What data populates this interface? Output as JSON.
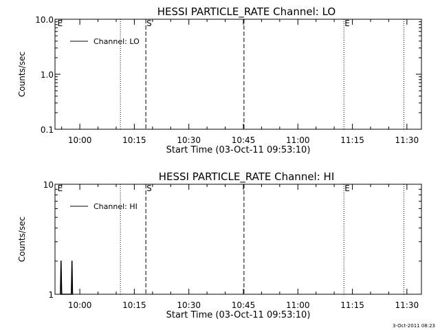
{
  "footer_stamp": "3-Oct-2011 08:23",
  "chart_data": [
    {
      "type": "line",
      "title": "HESSI PARTICLE_RATE Channel: LO",
      "xlabel": "Start Time (03-Oct-11 09:53:10)",
      "ylabel": "Counts/sec",
      "yscale": "log",
      "ylim": [
        0.1,
        10.0
      ],
      "y_ticks": [
        "10.0",
        "1.0",
        "0.1"
      ],
      "y_tick_values": [
        10.0,
        1.0,
        0.1
      ],
      "xlim": [
        "09:53:10",
        "11:34:00"
      ],
      "x_ticks": [
        "10:00",
        "10:15",
        "10:30",
        "10:45",
        "11:00",
        "11:15",
        "11:30"
      ],
      "legend": {
        "position": "top-left",
        "entries": [
          "Channel: LO"
        ]
      },
      "series": [
        {
          "name": "Channel: LO",
          "points": []
        }
      ],
      "markers": [
        {
          "time": "09:53:40",
          "style": "none",
          "label": "E"
        },
        {
          "time": "10:11:10",
          "style": "dotted",
          "label": ""
        },
        {
          "time": "10:18:10",
          "style": "dashed",
          "label": "S"
        },
        {
          "time": "10:45:10",
          "style": "dashed",
          "label": ""
        },
        {
          "time": "11:12:40",
          "style": "dotted",
          "label": "E"
        },
        {
          "time": "11:29:10",
          "style": "dotted",
          "label": ""
        }
      ]
    },
    {
      "type": "line",
      "title": "HESSI PARTICLE_RATE Channel: HI",
      "xlabel": "Start Time (03-Oct-11 09:53:10)",
      "ylabel": "Counts/sec",
      "yscale": "log",
      "ylim": [
        1,
        10
      ],
      "y_ticks": [
        "10",
        "1"
      ],
      "y_tick_values": [
        10,
        1
      ],
      "xlim": [
        "09:53:10",
        "11:34:00"
      ],
      "x_ticks": [
        "10:00",
        "10:15",
        "10:30",
        "10:45",
        "11:00",
        "11:15",
        "11:30"
      ],
      "legend": {
        "position": "top-left",
        "entries": [
          "Channel: HI"
        ]
      },
      "series": [
        {
          "name": "Channel: HI",
          "points": [
            [
              "09:54:40",
              1
            ],
            [
              "09:54:50",
              2
            ],
            [
              "09:55:00",
              1
            ],
            [
              "09:57:40",
              1
            ],
            [
              "09:57:50",
              2
            ],
            [
              "09:58:00",
              1
            ]
          ]
        }
      ],
      "markers": [
        {
          "time": "09:53:40",
          "style": "none",
          "label": "E"
        },
        {
          "time": "10:11:10",
          "style": "dotted",
          "label": ""
        },
        {
          "time": "10:18:10",
          "style": "dashed",
          "label": "S"
        },
        {
          "time": "10:45:10",
          "style": "dashed",
          "label": ""
        },
        {
          "time": "11:12:40",
          "style": "dotted",
          "label": "E"
        },
        {
          "time": "11:29:10",
          "style": "dotted",
          "label": ""
        }
      ]
    }
  ]
}
